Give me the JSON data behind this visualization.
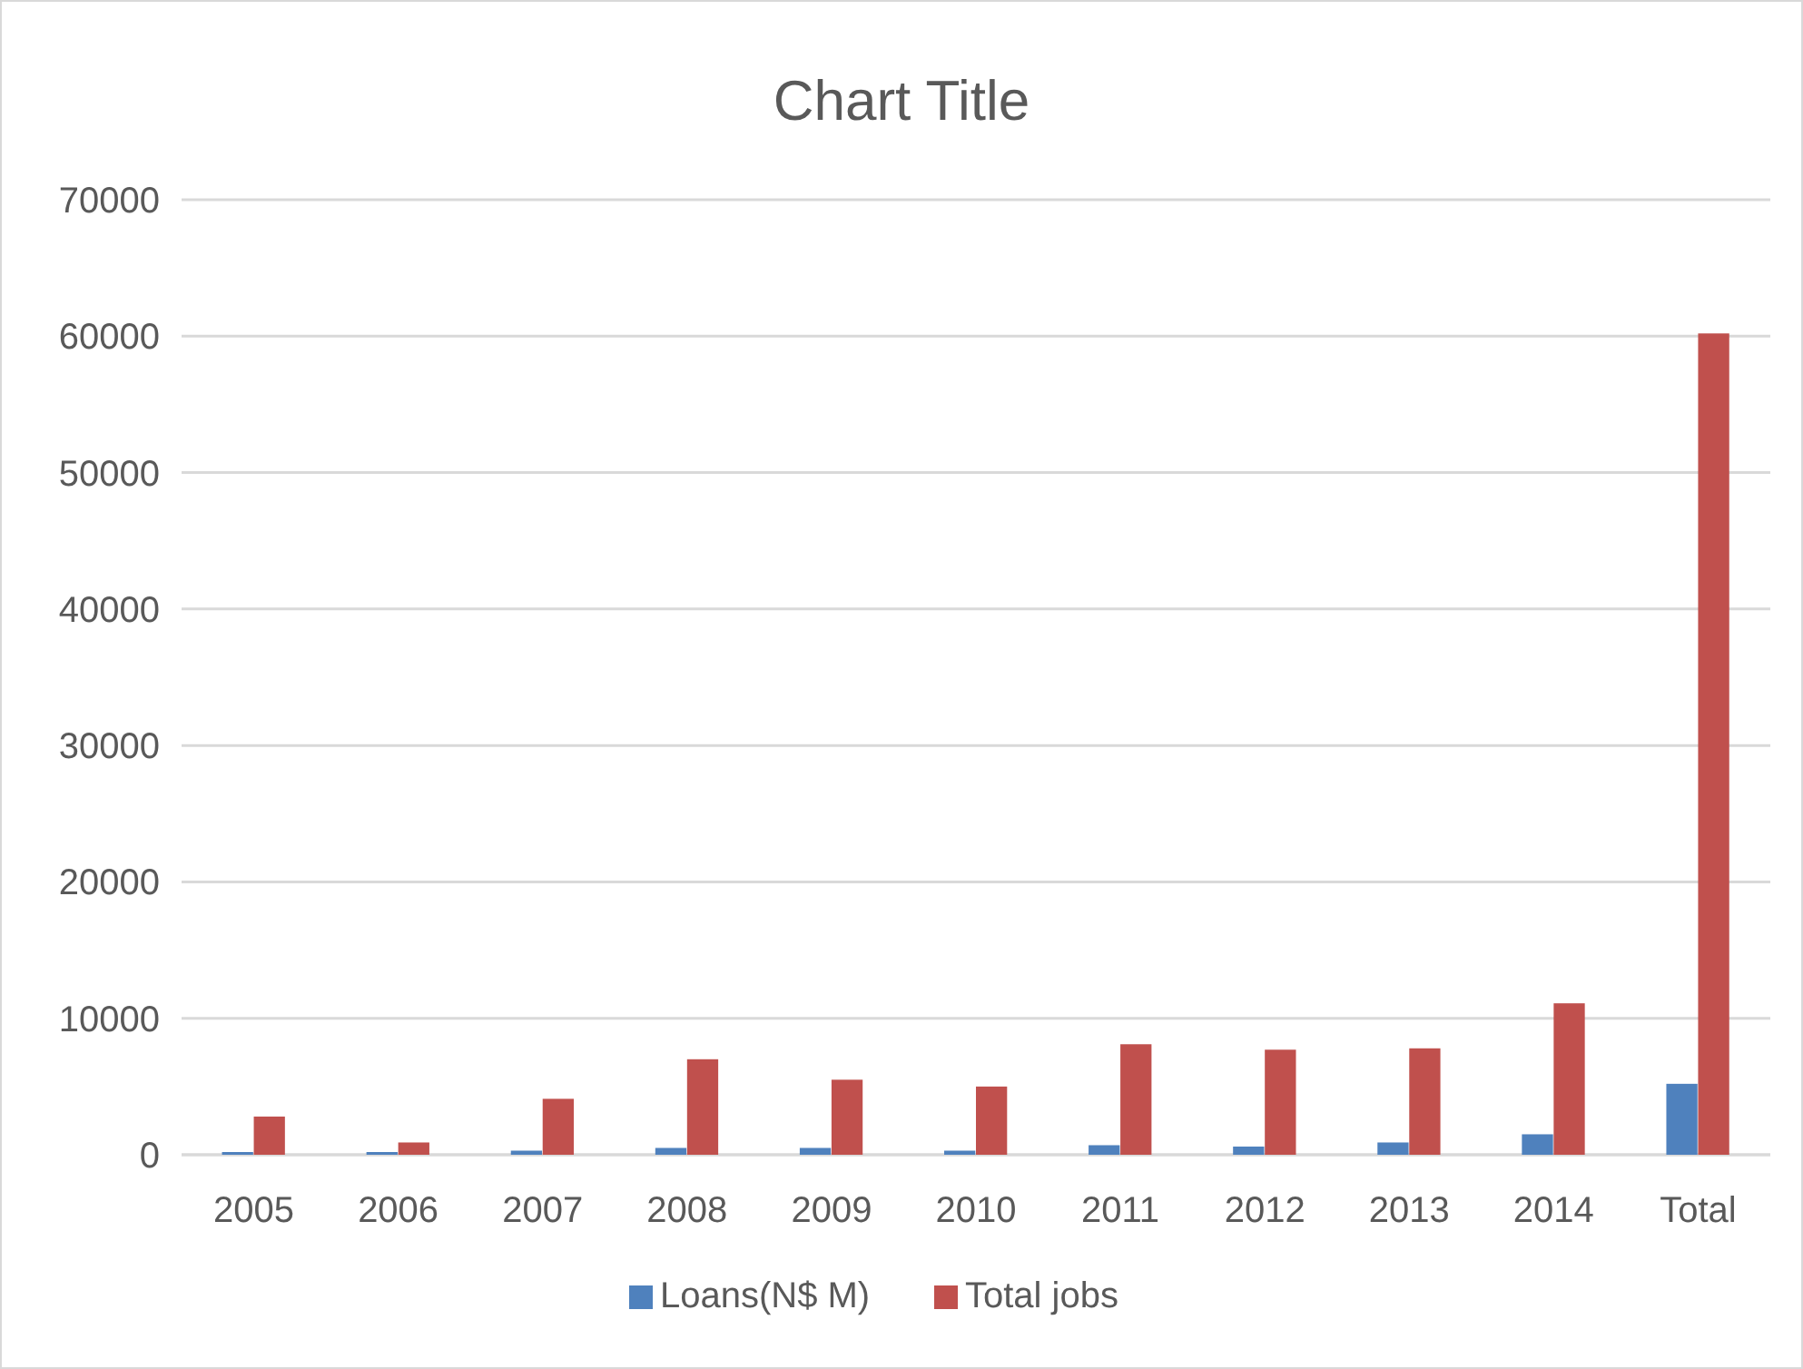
{
  "chart_data": {
    "type": "bar",
    "title": "Chart Title",
    "categories": [
      "2005",
      "2006",
      "2007",
      "2008",
      "2009",
      "2010",
      "2011",
      "2012",
      "2013",
      "2014",
      "Total"
    ],
    "series": [
      {
        "name": "Loans(N$ M)",
        "color": "#4f81bd",
        "values": [
          200,
          200,
          300,
          500,
          500,
          300,
          700,
          600,
          900,
          1500,
          5200
        ]
      },
      {
        "name": "Total jobs",
        "color": "#c0504d",
        "values": [
          2800,
          900,
          4100,
          7000,
          5500,
          5000,
          8100,
          7700,
          7800,
          11100,
          60200
        ]
      }
    ],
    "ylim": [
      0,
      70000
    ],
    "yticks": [
      0,
      10000,
      20000,
      30000,
      40000,
      50000,
      60000,
      70000
    ],
    "grid": "y",
    "legend": "bottom"
  }
}
